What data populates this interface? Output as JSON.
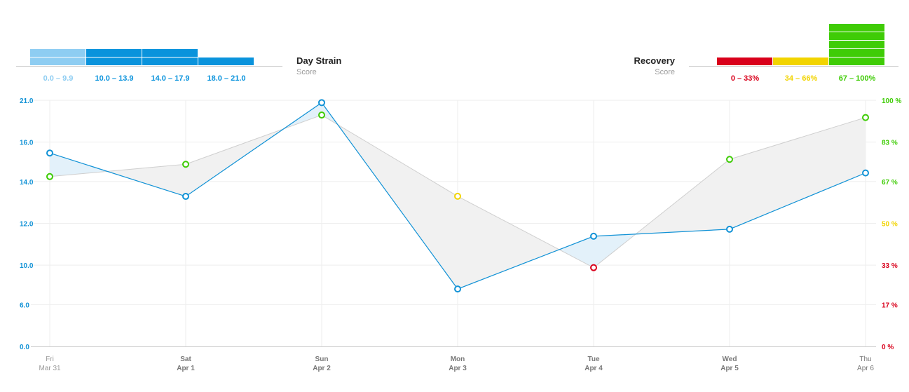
{
  "strain_legend": {
    "title": "Day Strain",
    "subtitle": "Score",
    "buckets": [
      {
        "label": "0.0 – 9.9",
        "color": "#8ecdf2",
        "level": 2
      },
      {
        "label": "10.0 – 13.9",
        "color": "#0a93dc",
        "level": 2
      },
      {
        "label": "14.0 – 17.9",
        "color": "#0a93dc",
        "level": 2
      },
      {
        "label": "18.0 – 21.0",
        "color": "#0a93dc",
        "level": 1
      }
    ]
  },
  "recovery_legend": {
    "title": "Recovery",
    "subtitle": "Score",
    "buckets": [
      {
        "label": "0 – 33%",
        "color": "#d9001b",
        "level": 1
      },
      {
        "label": "34 – 66%",
        "color": "#f2d400",
        "level": 1
      },
      {
        "label": "67 – 100%",
        "color": "#3fcc06",
        "level": 5
      }
    ]
  },
  "colors": {
    "strain_line": "#1192d6",
    "strain_area": "#e3f1fa",
    "recovery_line": "#cfcfcf",
    "recovery_area": "#f1f1f1",
    "red": "#d9001b",
    "yellow": "#f2d400",
    "green": "#3fcc06",
    "left_axis": "#1192d6",
    "grid": "#eeeeee",
    "baseline": "#cccccc"
  },
  "chart_data": {
    "type": "line",
    "x": [
      {
        "day": "Fri",
        "date": "Mar 31"
      },
      {
        "day": "Sat",
        "date": "Apr 1"
      },
      {
        "day": "Sun",
        "date": "Apr 2"
      },
      {
        "day": "Mon",
        "date": "Apr 3"
      },
      {
        "day": "Tue",
        "date": "Apr 4"
      },
      {
        "day": "Wed",
        "date": "Apr 5"
      },
      {
        "day": "Thu",
        "date": "Apr 6"
      }
    ],
    "y_left": {
      "ticks": [
        "0.0",
        "6.0",
        "10.0",
        "12.0",
        "14.0",
        "16.0",
        "21.0"
      ],
      "range": [
        0,
        21
      ]
    },
    "y_right": {
      "ticks": [
        {
          "label": "0 %",
          "value": 0,
          "color": "#d9001b"
        },
        {
          "label": "17 %",
          "value": 17,
          "color": "#d9001b"
        },
        {
          "label": "33 %",
          "value": 33,
          "color": "#d9001b"
        },
        {
          "label": "50 %",
          "value": 50,
          "color": "#f2d400"
        },
        {
          "label": "67 %",
          "value": 67,
          "color": "#3fcc06"
        },
        {
          "label": "83 %",
          "value": 83,
          "color": "#3fcc06"
        },
        {
          "label": "100 %",
          "value": 100,
          "color": "#3fcc06"
        }
      ],
      "range": [
        0,
        100
      ]
    },
    "series": [
      {
        "name": "Day Strain",
        "axis": "left",
        "values": [
          16.5,
          12.8,
          20.8,
          4.9,
          9.4,
          10.0,
          14.8
        ]
      },
      {
        "name": "Recovery",
        "axis": "right",
        "values": [
          69,
          74,
          94,
          61,
          32,
          76,
          93
        ]
      }
    ],
    "grid": true
  }
}
